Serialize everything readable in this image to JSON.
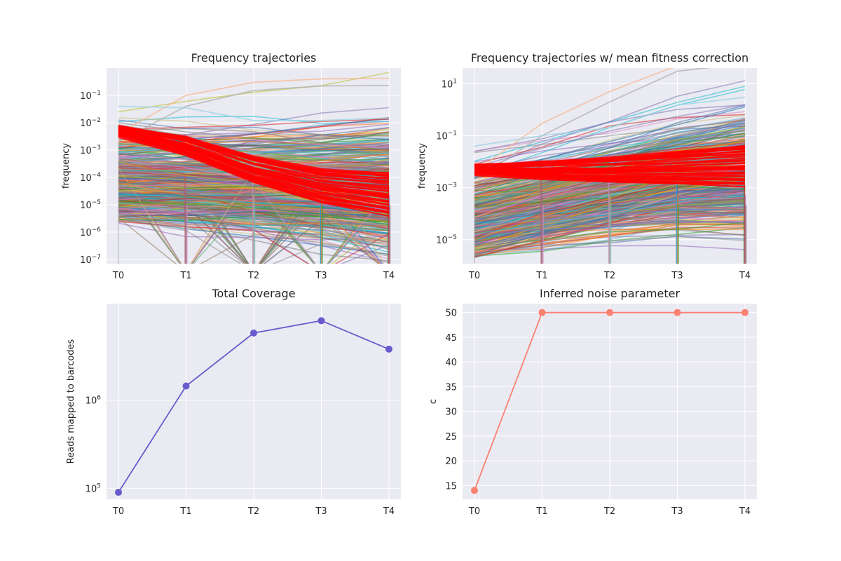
{
  "chart_data": [
    {
      "id": "p1",
      "type": "line",
      "title": "Frequency trajectories",
      "xlabel": "",
      "ylabel": "frequency",
      "categories": [
        "T0",
        "T1",
        "T2",
        "T3",
        "T4"
      ],
      "yscale": "log",
      "ylim": [
        7e-08,
        1.0
      ],
      "grid": true,
      "yticks": [
        {
          "value": 1e-07,
          "base": "10",
          "exp": "−7"
        },
        {
          "value": 1e-06,
          "base": "10",
          "exp": "−6"
        },
        {
          "value": 1e-05,
          "base": "10",
          "exp": "−5"
        },
        {
          "value": 0.0001,
          "base": "10",
          "exp": "−4"
        },
        {
          "value": 0.001,
          "base": "10",
          "exp": "−3"
        },
        {
          "value": 0.01,
          "base": "10",
          "exp": "−2"
        },
        {
          "value": 0.1,
          "base": "10",
          "exp": "−1"
        }
      ],
      "series_note": "hundreds of barcode lineages; a highlighted red group",
      "highlight": {
        "color": "#ff0000",
        "values": [
          0.005,
          0.0015,
          0.0002,
          5e-05,
          2.5e-05
        ]
      },
      "background_examples": [
        {
          "color": "#f5b994",
          "values": [
            0.004,
            0.1,
            0.3,
            0.4,
            0.42
          ]
        },
        {
          "color": "#b0b0b0",
          "values": [
            0.002,
            0.04,
            0.15,
            0.22,
            0.23
          ]
        },
        {
          "color": "#9bd4e3",
          "values": [
            0.04,
            0.035,
            0.012,
            0.012,
            0.015
          ]
        }
      ]
    },
    {
      "id": "p2",
      "type": "line",
      "title": "Frequency trajectories w/ mean fitness correction",
      "xlabel": "",
      "ylabel": "frequency",
      "categories": [
        "T0",
        "T1",
        "T2",
        "T3",
        "T4"
      ],
      "yscale": "log",
      "ylim": [
        1.2e-06,
        40
      ],
      "grid": true,
      "yticks": [
        {
          "value": 1e-05,
          "base": "10",
          "exp": "−5"
        },
        {
          "value": 0.001,
          "base": "10",
          "exp": "−3"
        },
        {
          "value": 0.1,
          "base": "10",
          "exp": "−1"
        },
        {
          "value": 10,
          "base": "10",
          "exp": "1"
        }
      ],
      "highlight": {
        "color": "#ff0000",
        "values": [
          0.005,
          0.005,
          0.005,
          0.006,
          0.007
        ]
      },
      "background_examples": [
        {
          "color": "#f5b994",
          "values": [
            0.004,
            0.3,
            5,
            50,
            100
          ]
        },
        {
          "color": "#b0b0b0",
          "values": [
            0.002,
            0.1,
            2,
            30,
            60
          ]
        },
        {
          "color": "#9bd4e3",
          "values": [
            0.04,
            0.1,
            0.2,
            1.5,
            3
          ]
        }
      ]
    },
    {
      "id": "p3",
      "type": "line",
      "title": "Total Coverage",
      "xlabel": "",
      "ylabel": "Reads mapped to barcodes",
      "categories": [
        "T0",
        "T1",
        "T2",
        "T3",
        "T4"
      ],
      "yscale": "log",
      "ylim": [
        75000,
        12500000
      ],
      "grid": true,
      "yticks": [
        {
          "value": 100000,
          "base": "10",
          "exp": "5"
        },
        {
          "value": 1000000,
          "base": "10",
          "exp": "6"
        }
      ],
      "series": [
        {
          "color": "#6a5acd",
          "values": [
            90000,
            1450000,
            5800000,
            8000000,
            3800000
          ]
        }
      ]
    },
    {
      "id": "p4",
      "type": "line",
      "title": "Inferred noise parameter",
      "xlabel": "",
      "ylabel": "c",
      "categories": [
        "T0",
        "T1",
        "T2",
        "T3",
        "T4"
      ],
      "yscale": "linear",
      "ylim": [
        12.2,
        51.8
      ],
      "grid": true,
      "yticks": [
        {
          "value": 15,
          "label": "15"
        },
        {
          "value": 20,
          "label": "20"
        },
        {
          "value": 25,
          "label": "25"
        },
        {
          "value": 30,
          "label": "30"
        },
        {
          "value": 35,
          "label": "35"
        },
        {
          "value": 40,
          "label": "40"
        },
        {
          "value": 45,
          "label": "45"
        },
        {
          "value": 50,
          "label": "50"
        }
      ],
      "series": [
        {
          "color": "#fa8072",
          "values": [
            14,
            50,
            50,
            50,
            50
          ]
        }
      ]
    }
  ]
}
